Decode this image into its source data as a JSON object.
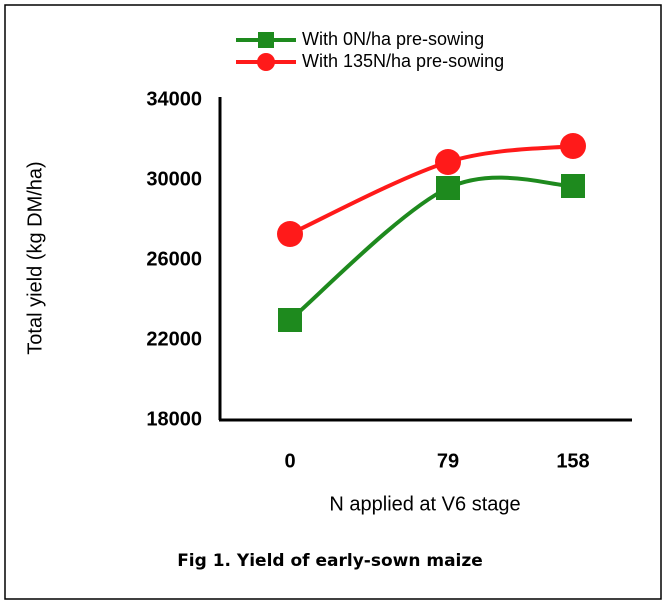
{
  "chart_data": {
    "type": "line",
    "caption": "Fig 1. Yield of early-sown maize",
    "x_label": "N applied at V6 stage",
    "y_label": "Total yield (kg DM/ha)",
    "categories": [
      "0",
      "79",
      "158"
    ],
    "series": [
      {
        "name": "With 0N/ha pre-sowing",
        "color": "#1e8a1e",
        "marker": "square",
        "values": [
          23000,
          29600,
          29700
        ]
      },
      {
        "name": "With 135N/ha pre-sowing",
        "color": "#ff1a1a",
        "marker": "circle",
        "values": [
          27300,
          30900,
          31700
        ]
      }
    ],
    "ylim": [
      18000,
      34000
    ],
    "yticks": [
      18000,
      22000,
      26000,
      30000,
      34000
    ],
    "grid": false
  }
}
